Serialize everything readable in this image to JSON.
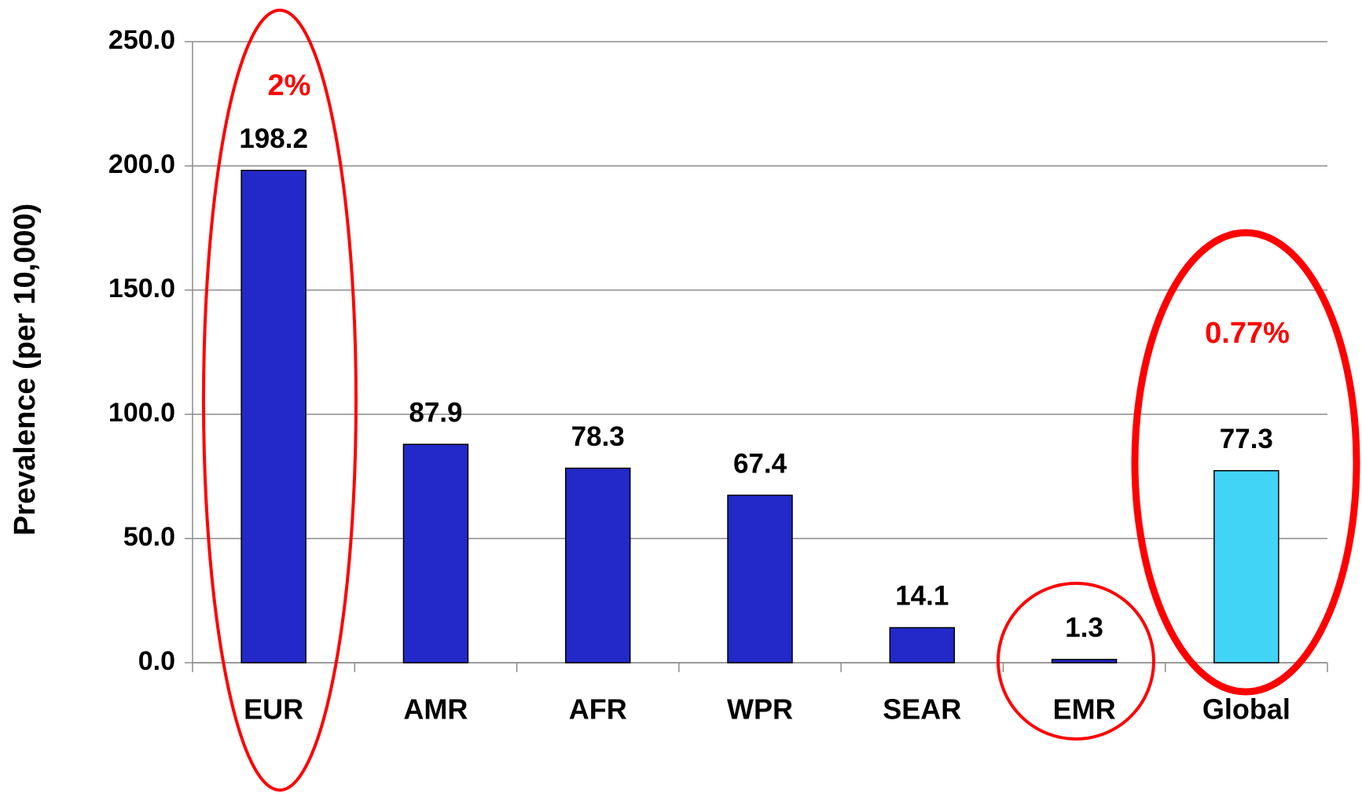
{
  "chart_data": {
    "type": "bar",
    "y_axis_label": "Prevalence (per 10,000)",
    "categories": [
      "EUR",
      "AMR",
      "AFR",
      "WPR",
      "SEAR",
      "EMR",
      "Global"
    ],
    "values": [
      198.2,
      87.9,
      78.3,
      67.4,
      14.1,
      1.3,
      77.3
    ],
    "colors": [
      "#2229c8",
      "#2229c8",
      "#2229c8",
      "#2229c8",
      "#2229c8",
      "#2229c8",
      "#41d4f7"
    ],
    "ylim": [
      0,
      250
    ],
    "yticks": [
      {
        "value": 0,
        "label": "0.0"
      },
      {
        "value": 50,
        "label": "50.0"
      },
      {
        "value": 100,
        "label": "100.0"
      },
      {
        "value": 150,
        "label": "150.0"
      },
      {
        "value": 200,
        "label": "200.0"
      },
      {
        "value": 250,
        "label": "250.0"
      }
    ],
    "grid": true,
    "annotations": [
      "2%",
      "0.77%"
    ]
  }
}
